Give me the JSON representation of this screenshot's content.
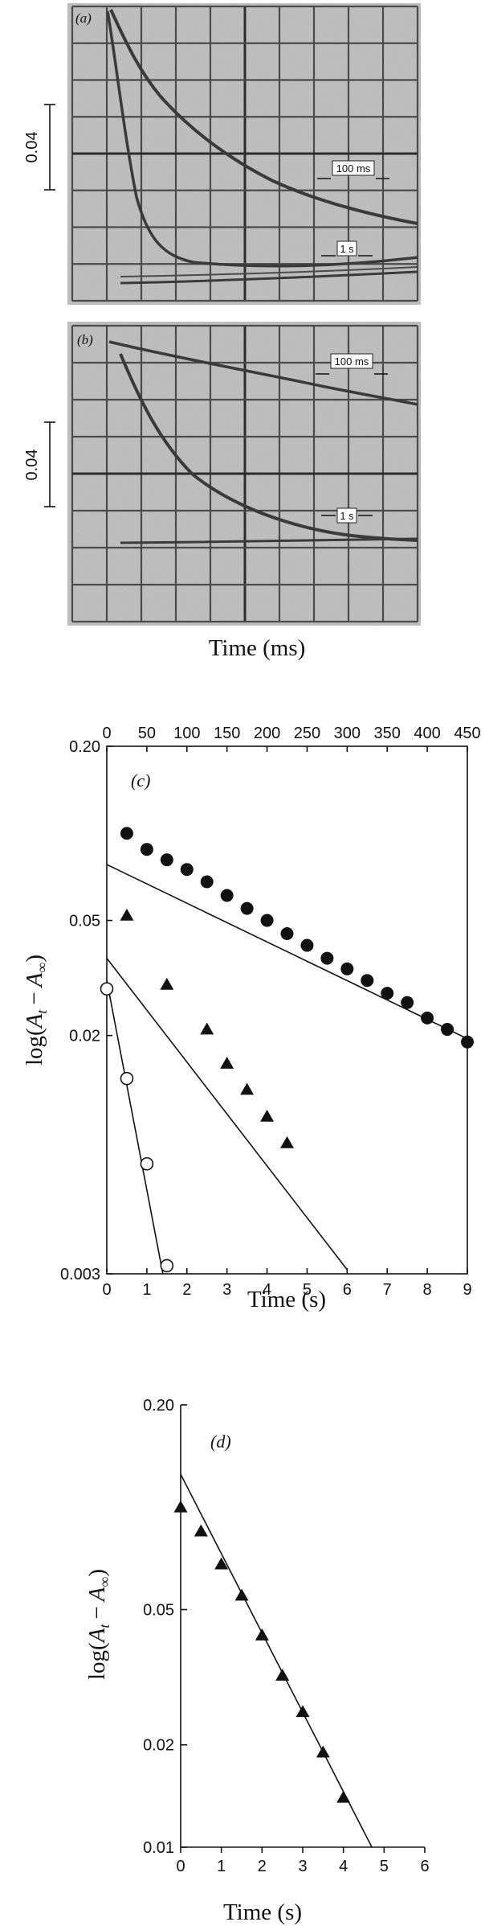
{
  "osc": {
    "xlabel": "Time (ms)",
    "scale_label": "0.04",
    "panel_a": {
      "label": "(a)",
      "ann_fast": "100 ms",
      "ann_slow": "1 s"
    },
    "panel_b": {
      "label": "(b)",
      "ann_fast": "100 ms",
      "ann_slow": "1 s"
    }
  },
  "chart_data": [
    {
      "type": "scatter",
      "panel": "(c)",
      "title": "",
      "xlabel": "Time (s)",
      "ylabel": "log(A_t − A_∞)",
      "ylabel_main": "log(",
      "ylabel_A1": "A",
      "ylabel_sub1": "t",
      "ylabel_dash": "−",
      "ylabel_A2": "A",
      "ylabel_sub2": "∞",
      "ylabel_close": ")",
      "y_scale": "log",
      "xlim": [
        0,
        9
      ],
      "ylim": [
        0.003,
        0.2
      ],
      "x_ticks": [
        0,
        1,
        2,
        3,
        4,
        5,
        6,
        7,
        8,
        9
      ],
      "top_axis": {
        "label": "",
        "lim": [
          0,
          450
        ],
        "ticks": [
          0,
          50,
          100,
          150,
          200,
          250,
          300,
          350,
          400,
          450
        ]
      },
      "y_ticks": [
        0.003,
        0.02,
        0.05,
        0.2
      ],
      "y_tick_labels": [
        "0.003",
        "0.02",
        "0.05",
        "0.20"
      ],
      "series": [
        {
          "marker": "filled-circle",
          "x_axis": "top",
          "x": [
            25,
            50,
            75,
            100,
            125,
            150,
            175,
            200,
            225,
            250,
            275,
            300,
            325,
            350,
            375,
            400,
            425,
            450
          ],
          "y": [
            0.1,
            0.088,
            0.081,
            0.075,
            0.068,
            0.061,
            0.055,
            0.05,
            0.045,
            0.041,
            0.037,
            0.034,
            0.031,
            0.028,
            0.026,
            0.023,
            0.021,
            0.019
          ],
          "fit": {
            "x": [
              0,
              450
            ],
            "y": [
              0.078,
              0.0195
            ]
          }
        },
        {
          "marker": "filled-triangle",
          "x_axis": "bottom",
          "x": [
            0.5,
            1.5,
            2.5,
            3.0,
            3.5,
            4.0,
            4.5
          ],
          "y": [
            0.052,
            0.03,
            0.021,
            0.016,
            0.013,
            0.0105,
            0.0085
          ],
          "fit": {
            "x": [
              0,
              6
            ],
            "y": [
              0.037,
              0.0031
            ]
          }
        },
        {
          "marker": "open-circle",
          "x_axis": "bottom",
          "x": [
            0,
            0.5,
            1.0,
            1.5
          ],
          "y": [
            0.029,
            0.0142,
            0.0072,
            0.0032
          ],
          "fit": {
            "x": [
              0,
              1.4
            ],
            "y": [
              0.031,
              0.003
            ]
          }
        }
      ]
    },
    {
      "type": "scatter",
      "panel": "(d)",
      "title": "",
      "xlabel": "Time (s)",
      "ylabel": "log(A_t − A_∞)",
      "ylabel_main": "log(",
      "ylabel_A1": "A",
      "ylabel_sub1": "t",
      "ylabel_dash": "−",
      "ylabel_A2": "A",
      "ylabel_sub2": "∞",
      "ylabel_close": ")",
      "y_scale": "log",
      "xlim": [
        0,
        6
      ],
      "ylim": [
        0.01,
        0.2
      ],
      "x_ticks": [
        0,
        1,
        2,
        3,
        4,
        5,
        6
      ],
      "y_ticks": [
        0.01,
        0.02,
        0.05,
        0.2
      ],
      "y_tick_labels": [
        "0.01",
        "0.02",
        "0.05",
        "0.20"
      ],
      "series": [
        {
          "marker": "filled-triangle",
          "x": [
            0,
            0.5,
            1.0,
            1.5,
            2.0,
            2.5,
            3.0,
            3.5,
            4.0
          ],
          "y": [
            0.1,
            0.085,
            0.068,
            0.055,
            0.042,
            0.032,
            0.025,
            0.019,
            0.014
          ],
          "fit": {
            "x": [
              0,
              4.7
            ],
            "y": [
              0.125,
              0.01
            ]
          }
        }
      ]
    }
  ]
}
